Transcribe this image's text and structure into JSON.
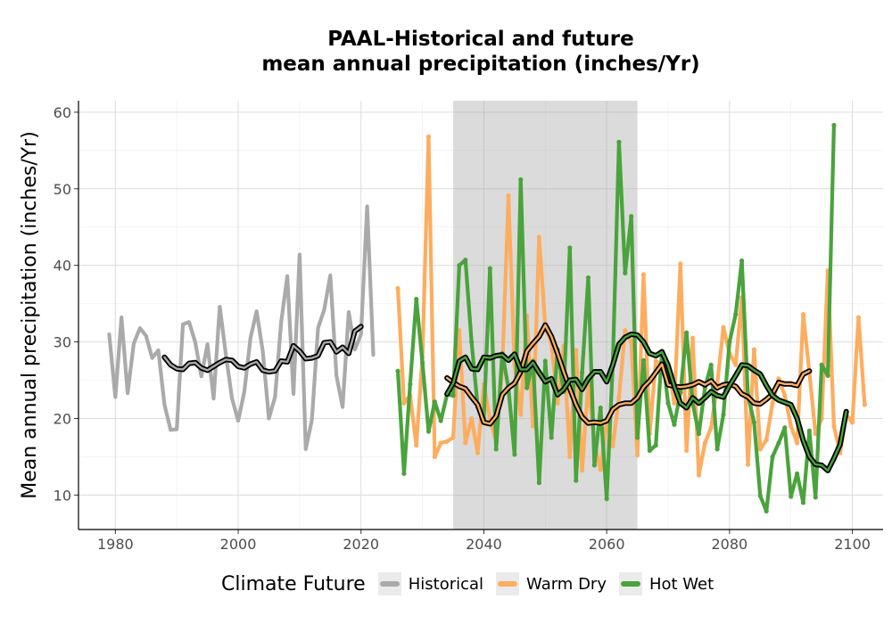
{
  "chart_data": {
    "type": "line",
    "title_lines": [
      "PAAL-Historical and future",
      "mean annual precipitation (inches/Yr)"
    ],
    "xlabel": "",
    "ylabel": "Mean annual precipitation (inches/Yr)",
    "xlim": [
      1974,
      2105
    ],
    "ylim": [
      5.5,
      61.5
    ],
    "x_ticks": [
      1980,
      2000,
      2020,
      2040,
      2060,
      2080,
      2100
    ],
    "y_ticks": [
      10,
      20,
      30,
      40,
      50,
      60
    ],
    "grid": true,
    "shaded_period": [
      2035,
      2065
    ],
    "legend": {
      "title": "Climate Future",
      "position": "bottom",
      "items": [
        {
          "label": "Historical",
          "color": "#aaaaaa"
        },
        {
          "label": "Warm Dry",
          "color": "#fdad5f"
        },
        {
          "label": "Hot Wet",
          "color": "#4aa33c"
        }
      ]
    },
    "series": [
      {
        "name": "Historical",
        "color": "#aaaaaa",
        "x_start": 1979,
        "values": [
          31.0,
          22.8,
          33.2,
          23.3,
          29.8,
          31.8,
          30.8,
          27.9,
          28.9,
          21.8,
          18.5,
          18.6,
          32.3,
          32.6,
          30.0,
          25.5,
          29.7,
          22.6,
          34.6,
          28.3,
          22.6,
          19.7,
          23.5,
          30.5,
          34.0,
          28.8,
          20.0,
          22.8,
          32.6,
          38.6,
          23.2,
          41.4,
          16.0,
          19.8,
          31.8,
          34.2,
          38.7,
          25.6,
          21.5,
          33.9,
          29.0,
          31.0,
          47.7,
          28.3
        ],
        "moving_average": {
          "x_start": 1988,
          "values": [
            28.0,
            27.0,
            26.5,
            26.4,
            27.2,
            27.3,
            26.6,
            26.3,
            26.8,
            27.3,
            27.7,
            27.6,
            26.8,
            26.6,
            27.1,
            27.4,
            26.3,
            26.1,
            26.2,
            27.5,
            27.4,
            29.5,
            28.8,
            27.8,
            27.9,
            28.2,
            29.9,
            30.0,
            28.7,
            29.3,
            28.5,
            31.4,
            32.0
          ]
        }
      },
      {
        "name": "Warm Dry",
        "color": "#fdad5f",
        "x_start": 2026,
        "values": [
          37.0,
          22.0,
          23.0,
          16.5,
          28.0,
          56.8,
          15.0,
          16.8,
          17.0,
          17.5,
          31.5,
          16.8,
          20.0,
          15.5,
          24.5,
          19.8,
          17.0,
          26.5,
          49.1,
          27.0,
          20.5,
          33.4,
          19.0,
          43.7,
          32.0,
          29.8,
          22.0,
          29.5,
          15.0,
          28.9,
          13.2,
          24.7,
          16.8,
          13.3,
          19.6,
          16.4,
          22.8,
          31.5,
          30.0,
          15.2,
          38.8,
          18.0,
          27.5,
          27.0,
          27.2,
          22.0,
          40.2,
          15.8,
          30.5,
          12.6,
          16.8,
          18.8,
          24.5,
          31.9,
          28.5,
          27.0,
          35.8,
          14.0,
          29.0,
          16.0,
          17.2,
          22.0,
          25.2,
          23.0,
          19.0,
          16.8,
          33.6,
          26.0,
          18.0,
          20.0,
          39.3,
          19.0,
          15.5,
          20.5,
          19.5,
          33.2,
          21.8
        ],
        "moving_average": {
          "x_start": 2034,
          "values": [
            25.3,
            24.7,
            24.2,
            23.9,
            22.8,
            21.8,
            19.5,
            19.3,
            20.3,
            23.1,
            24.0,
            24.6,
            26.1,
            28.8,
            29.8,
            30.7,
            32.2,
            30.7,
            28.5,
            26.1,
            23.9,
            21.8,
            20.2,
            19.4,
            19.5,
            19.4,
            19.7,
            21.2,
            21.8,
            22.0,
            22.0,
            22.7,
            24.1,
            24.9,
            26.0,
            27.1,
            24.4,
            24.2,
            24.1,
            24.2,
            24.4,
            24.8,
            24.4,
            24.9,
            24.0,
            24.4,
            24.5,
            24.2,
            23.2,
            22.8,
            22.0,
            21.9,
            22.5,
            23.2,
            24.7,
            24.5,
            24.5,
            24.3,
            25.8,
            26.2
          ]
        }
      },
      {
        "name": "Hot Wet",
        "color": "#4aa33c",
        "x_start": 2026,
        "values": [
          26.2,
          12.8,
          24.5,
          35.6,
          27.3,
          18.3,
          22.2,
          19.7,
          23.1,
          23.0,
          40.0,
          40.7,
          30.0,
          21.5,
          20.0,
          39.6,
          16.0,
          28.5,
          24.0,
          15.3,
          51.2,
          24.0,
          27.5,
          11.6,
          27.5,
          17.5,
          29.0,
          23.5,
          42.3,
          11.9,
          26.0,
          38.4,
          13.9,
          21.4,
          9.5,
          27.3,
          56.1,
          39.0,
          46.4,
          17.5,
          27.6,
          15.8,
          16.5,
          28.8,
          22.0,
          19.2,
          23.4,
          31.2,
          22.0,
          18.0,
          24.0,
          27.0,
          16.0,
          20.5,
          30.0,
          33.6,
          40.6,
          23.0,
          19.5,
          9.9,
          7.9,
          15.0,
          16.8,
          18.8,
          9.8,
          12.8,
          9.0,
          18.4,
          9.7,
          27.0,
          25.6,
          58.3
        ],
        "moving_average": {
          "x_start": 2034,
          "values": [
            23.2,
            24.6,
            27.5,
            28.0,
            26.5,
            26.4,
            28.0,
            27.9,
            28.2,
            28.3,
            27.6,
            28.4,
            26.4,
            26.4,
            27.3,
            26.0,
            24.8,
            25.2,
            23.1,
            23.8,
            25.0,
            25.1,
            23.8,
            25.2,
            26.1,
            26.1,
            24.8,
            27.0,
            29.7,
            30.6,
            31.0,
            30.9,
            30.0,
            28.5,
            28.2,
            28.7,
            26.9,
            24.2,
            22.0,
            21.4,
            22.7,
            22.0,
            22.7,
            23.5,
            23.0,
            22.8,
            24.3,
            25.6,
            27.0,
            26.9,
            26.3,
            25.8,
            24.3,
            23.0,
            22.4,
            22.1,
            21.8,
            20.0,
            17.1,
            15.0,
            14.0,
            13.9,
            13.2,
            14.8,
            16.6,
            20.9
          ]
        }
      }
    ]
  }
}
